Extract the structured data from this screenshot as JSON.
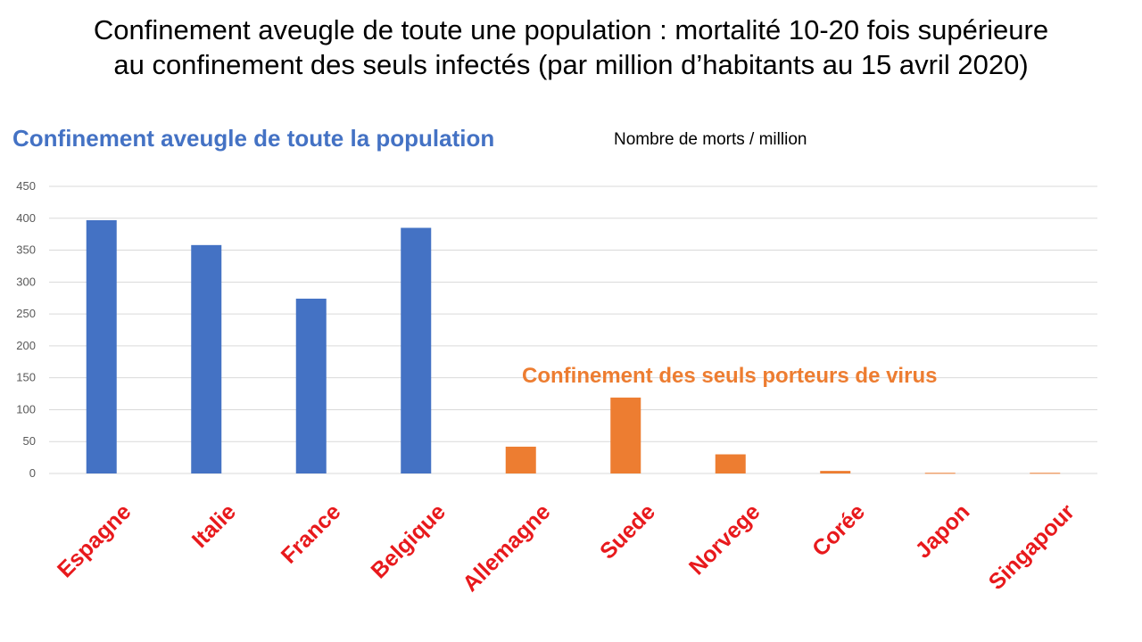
{
  "title_line1": "Confinement aveugle de toute une population : mortalité 10-20 fois supérieure",
  "title_line2": "au confinement des seuls infectés (par million d’habitants au 15 avril 2020)",
  "group_blue_label": "Confinement aveugle de toute la population",
  "group_orange_label": "Confinement des seuls porteurs de virus",
  "unit_label": "Nombre de morts / million",
  "colors": {
    "blue": "#4472C4",
    "orange": "#ED7D31",
    "category_label": "#E8191C",
    "gridline": "#D9D9D9",
    "tick_label": "#595959"
  },
  "chart_data": {
    "type": "bar",
    "title": "",
    "xlabel": "",
    "ylabel": "",
    "ylim": [
      0,
      450
    ],
    "yticks": [
      0,
      50,
      100,
      150,
      200,
      250,
      300,
      350,
      400,
      450
    ],
    "grid": true,
    "categories": [
      "Espagne",
      "Italie",
      "France",
      "Belgique",
      "Allemagne",
      "Suede",
      "Norvege",
      "Corée",
      "Japon",
      "Singapour"
    ],
    "series": [
      {
        "group": "blue",
        "values": [
          397,
          358,
          274,
          385,
          null,
          null,
          null,
          null,
          null,
          null
        ]
      },
      {
        "group": "orange",
        "values": [
          null,
          null,
          null,
          null,
          42,
          119,
          30,
          4,
          1,
          1
        ]
      }
    ]
  }
}
